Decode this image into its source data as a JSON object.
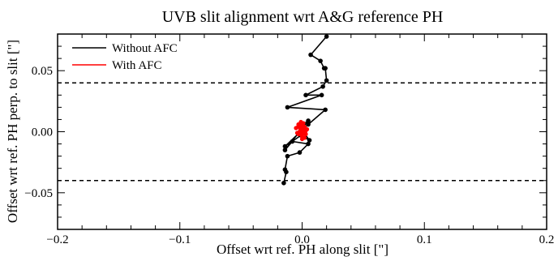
{
  "chart_data": {
    "type": "scatter",
    "title": "UVB slit alignment wrt A&G reference PH",
    "xlabel": "Offset wrt ref. PH along slit [\"]",
    "ylabel": "Offset wrt ref. PH perp. to slit [\"]",
    "xlim": [
      -0.2,
      0.2
    ],
    "ylim": [
      -0.08,
      0.08
    ],
    "x_ticks": [
      {
        "value": -0.2,
        "label": "−0.2"
      },
      {
        "value": -0.1,
        "label": "−0.1"
      },
      {
        "value": 0.0,
        "label": "0.0"
      },
      {
        "value": 0.1,
        "label": "0.1"
      },
      {
        "value": 0.2,
        "label": "0.2"
      }
    ],
    "y_ticks": [
      {
        "value": -0.05,
        "label": "−0.05"
      },
      {
        "value": 0.0,
        "label": "0.00"
      },
      {
        "value": 0.05,
        "label": "0.05"
      }
    ],
    "reference_lines": [
      {
        "axis": "y",
        "value": 0.04,
        "style": "dashed"
      },
      {
        "axis": "y",
        "value": -0.04,
        "style": "dashed"
      }
    ],
    "legend": {
      "position": "top-left"
    },
    "series": [
      {
        "name": "Without AFC",
        "color": "#000000",
        "marker": "circle",
        "x": [
          0.02,
          0.007,
          0.015,
          0.018,
          0.019,
          0.02,
          0.017,
          0.003,
          0.016,
          -0.012,
          0.019,
          0.005,
          -0.014,
          -0.001,
          0.006,
          -0.002,
          0.005,
          -0.014,
          -0.008,
          0.005,
          -0.002,
          -0.012,
          -0.014,
          -0.013,
          -0.015
        ],
        "y": [
          0.078,
          0.063,
          0.058,
          0.052,
          0.052,
          0.042,
          0.037,
          0.03,
          0.03,
          0.02,
          0.018,
          0.006,
          -0.012,
          -0.003,
          -0.007,
          0.004,
          0.009,
          -0.015,
          -0.008,
          -0.01,
          -0.017,
          -0.02,
          -0.031,
          -0.033,
          -0.042
        ]
      },
      {
        "name": "With AFC",
        "color": "#ff0000",
        "marker": "circle",
        "x": [
          -0.005,
          -0.003,
          -0.002,
          -0.001,
          0.0,
          0.001,
          0.002,
          0.003,
          0.004,
          0.0,
          -0.001,
          0.002,
          -0.003,
          0.001,
          0.0,
          -0.002,
          0.003,
          -0.004,
          0.001,
          0.002
        ],
        "y": [
          0.003,
          0.006,
          0.0,
          0.008,
          0.003,
          0.001,
          0.004,
          -0.002,
          0.002,
          -0.004,
          -0.001,
          -0.005,
          -0.002,
          0.007,
          -0.006,
          0.005,
          0.001,
          -0.001,
          0.0,
          0.002
        ]
      }
    ]
  }
}
